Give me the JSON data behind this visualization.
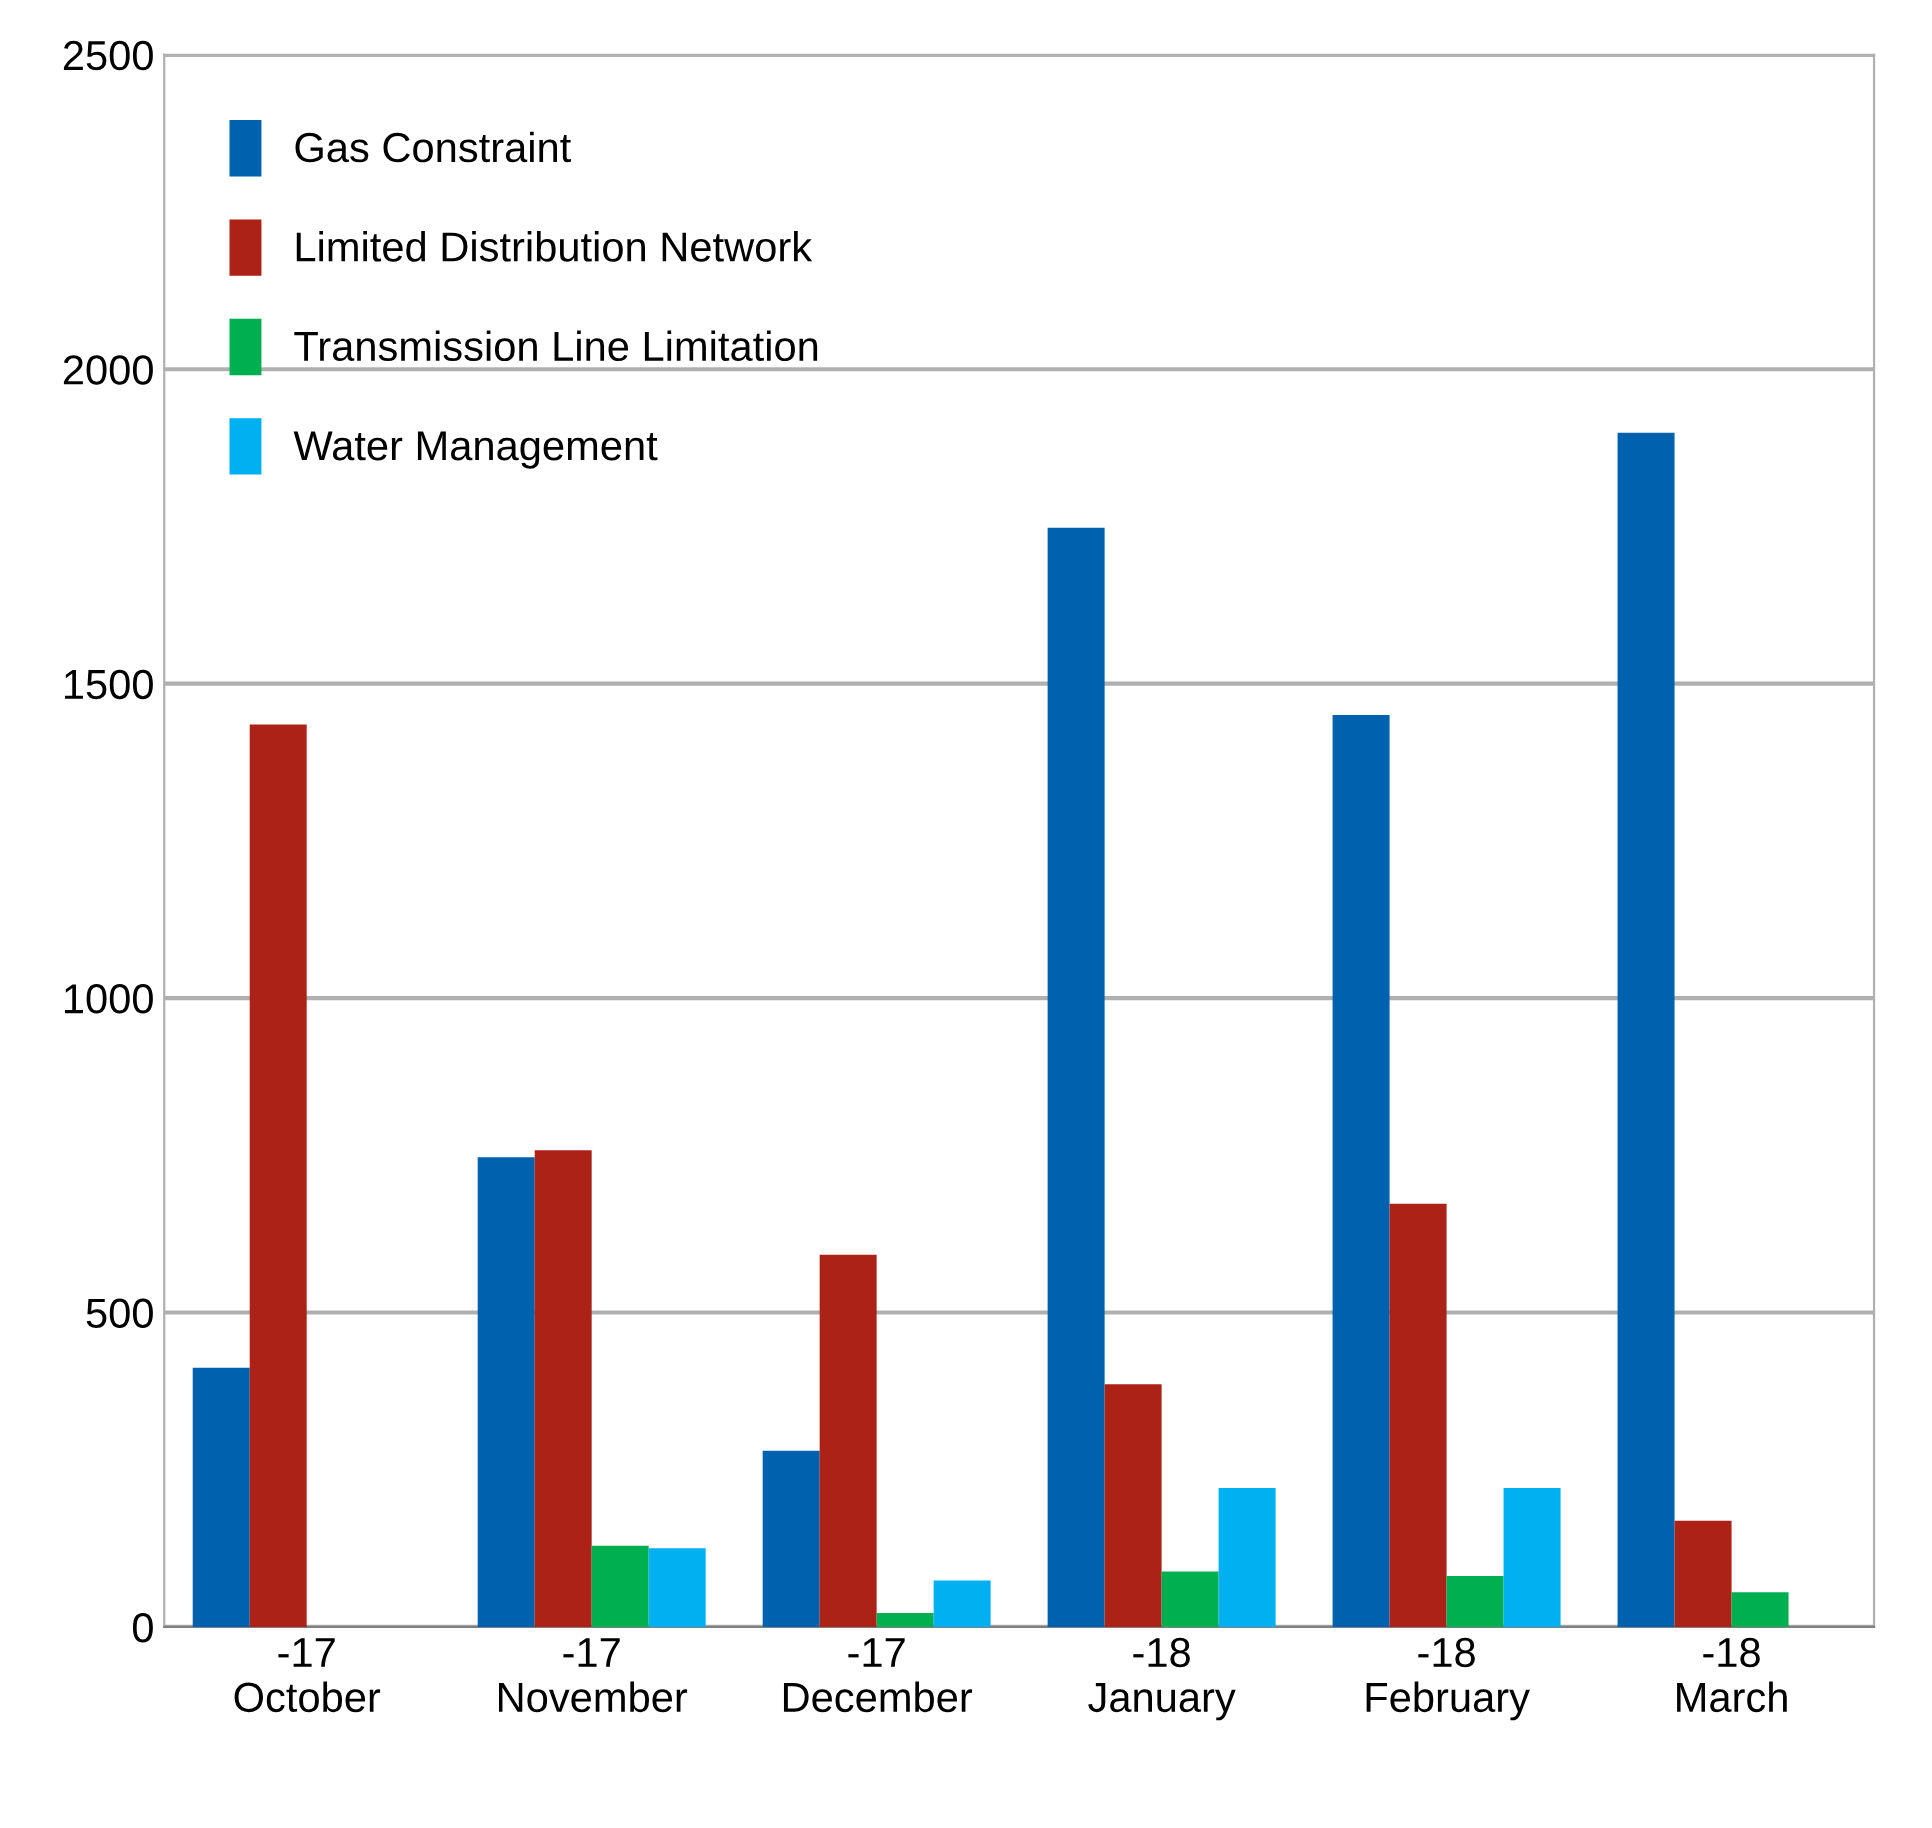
{
  "chart_data": {
    "type": "bar",
    "categories": [
      "-17\nOctober",
      "-17\nNovember",
      "-17\nDecember",
      "-18\nJanuary",
      "-18\nFebruary",
      "-18\nMarch"
    ],
    "series": [
      {
        "name": "Gas Constraint",
        "color": "#0061ae",
        "values": [
          412,
          747,
          280,
          1748,
          1450,
          1899
        ]
      },
      {
        "name": "Limited Distribution Network",
        "color": "#ac2216",
        "values": [
          1435,
          758,
          592,
          386,
          673,
          169
        ]
      },
      {
        "name": "Transmission Line Limitation",
        "color": "#00b050",
        "values": [
          null,
          129,
          22,
          88,
          81,
          55
        ]
      },
      {
        "name": "Water Management",
        "color": "#00b0f0",
        "values": [
          null,
          125,
          74,
          221,
          221,
          null
        ]
      }
    ],
    "ylim": [
      0,
      2500
    ],
    "yticks": [
      0,
      500,
      1000,
      1500,
      2000,
      2500
    ],
    "grid": "y",
    "legend": "top left"
  }
}
